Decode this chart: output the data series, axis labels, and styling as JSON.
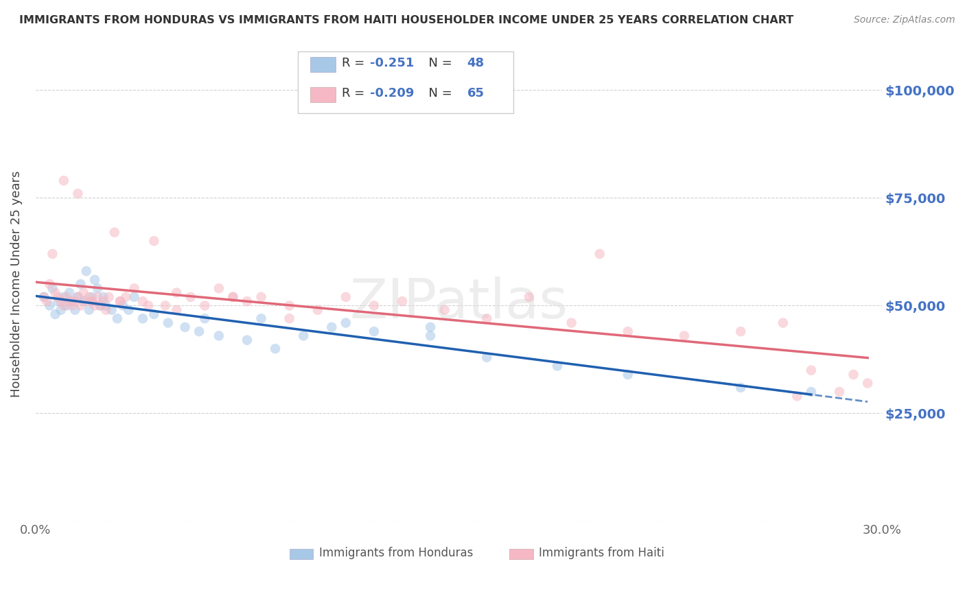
{
  "title": "IMMIGRANTS FROM HONDURAS VS IMMIGRANTS FROM HAITI HOUSEHOLDER INCOME UNDER 25 YEARS CORRELATION CHART",
  "source": "Source: ZipAtlas.com",
  "ylabel": "Householder Income Under 25 years",
  "xlim": [
    0.0,
    0.3
  ],
  "ylim": [
    0,
    110000
  ],
  "yticks": [
    0,
    25000,
    50000,
    75000,
    100000
  ],
  "xticks": [
    0.0,
    0.05,
    0.1,
    0.15,
    0.2,
    0.25,
    0.3
  ],
  "series1_name": "Immigrants from Honduras",
  "series1_color": "#A8C8E8",
  "series1_line_color": "#2060B0",
  "series1_R": -0.251,
  "series1_N": 48,
  "series2_name": "Immigrants from Haiti",
  "series2_color": "#F5B8C4",
  "series2_line_color": "#E06878",
  "series2_R": -0.209,
  "series2_N": 65,
  "watermark": "ZIPatlas",
  "background_color": "#FFFFFF",
  "grid_color": "#CCCCCC",
  "title_color": "#333333",
  "right_axis_color": "#4472C4",
  "legend_text_color": "#333333",
  "legend_value_color": "#4472C4",
  "marker_size": 110,
  "marker_alpha": 0.55,
  "honduras_x": [
    0.003,
    0.005,
    0.006,
    0.007,
    0.008,
    0.009,
    0.01,
    0.011,
    0.012,
    0.013,
    0.014,
    0.015,
    0.016,
    0.017,
    0.018,
    0.019,
    0.02,
    0.021,
    0.022,
    0.023,
    0.024,
    0.025,
    0.027,
    0.029,
    0.031,
    0.033,
    0.035,
    0.038,
    0.042,
    0.047,
    0.053,
    0.058,
    0.065,
    0.075,
    0.085,
    0.095,
    0.105,
    0.12,
    0.14,
    0.16,
    0.185,
    0.21,
    0.25,
    0.275,
    0.14,
    0.08,
    0.06,
    0.11
  ],
  "honduras_y": [
    52000,
    50000,
    54000,
    48000,
    51000,
    49000,
    52000,
    50000,
    53000,
    51000,
    49000,
    52000,
    55000,
    51000,
    58000,
    49000,
    52000,
    56000,
    54000,
    50000,
    52000,
    50000,
    49000,
    47000,
    50000,
    49000,
    52000,
    47000,
    48000,
    46000,
    45000,
    44000,
    43000,
    42000,
    40000,
    43000,
    45000,
    44000,
    43000,
    38000,
    36000,
    34000,
    31000,
    30000,
    45000,
    47000,
    47000,
    46000
  ],
  "haiti_x": [
    0.003,
    0.004,
    0.005,
    0.006,
    0.007,
    0.008,
    0.009,
    0.01,
    0.011,
    0.012,
    0.013,
    0.014,
    0.015,
    0.016,
    0.017,
    0.018,
    0.019,
    0.02,
    0.021,
    0.022,
    0.023,
    0.024,
    0.025,
    0.026,
    0.028,
    0.03,
    0.032,
    0.035,
    0.038,
    0.042,
    0.046,
    0.05,
    0.055,
    0.06,
    0.065,
    0.07,
    0.075,
    0.08,
    0.09,
    0.1,
    0.11,
    0.12,
    0.13,
    0.145,
    0.16,
    0.175,
    0.19,
    0.21,
    0.23,
    0.25,
    0.265,
    0.275,
    0.285,
    0.29,
    0.295,
    0.01,
    0.015,
    0.02,
    0.03,
    0.04,
    0.05,
    0.07,
    0.09,
    0.2,
    0.27
  ],
  "haiti_y": [
    52000,
    51000,
    55000,
    62000,
    53000,
    52000,
    51000,
    50000,
    52000,
    51000,
    50000,
    51000,
    52000,
    50000,
    53000,
    51000,
    52000,
    51000,
    50000,
    52000,
    50000,
    51000,
    49000,
    52000,
    67000,
    51000,
    52000,
    54000,
    51000,
    65000,
    50000,
    53000,
    52000,
    50000,
    54000,
    52000,
    51000,
    52000,
    50000,
    49000,
    52000,
    50000,
    51000,
    49000,
    47000,
    52000,
    46000,
    44000,
    43000,
    44000,
    46000,
    35000,
    30000,
    34000,
    32000,
    79000,
    76000,
    51000,
    51000,
    50000,
    49000,
    52000,
    47000,
    62000,
    29000
  ]
}
